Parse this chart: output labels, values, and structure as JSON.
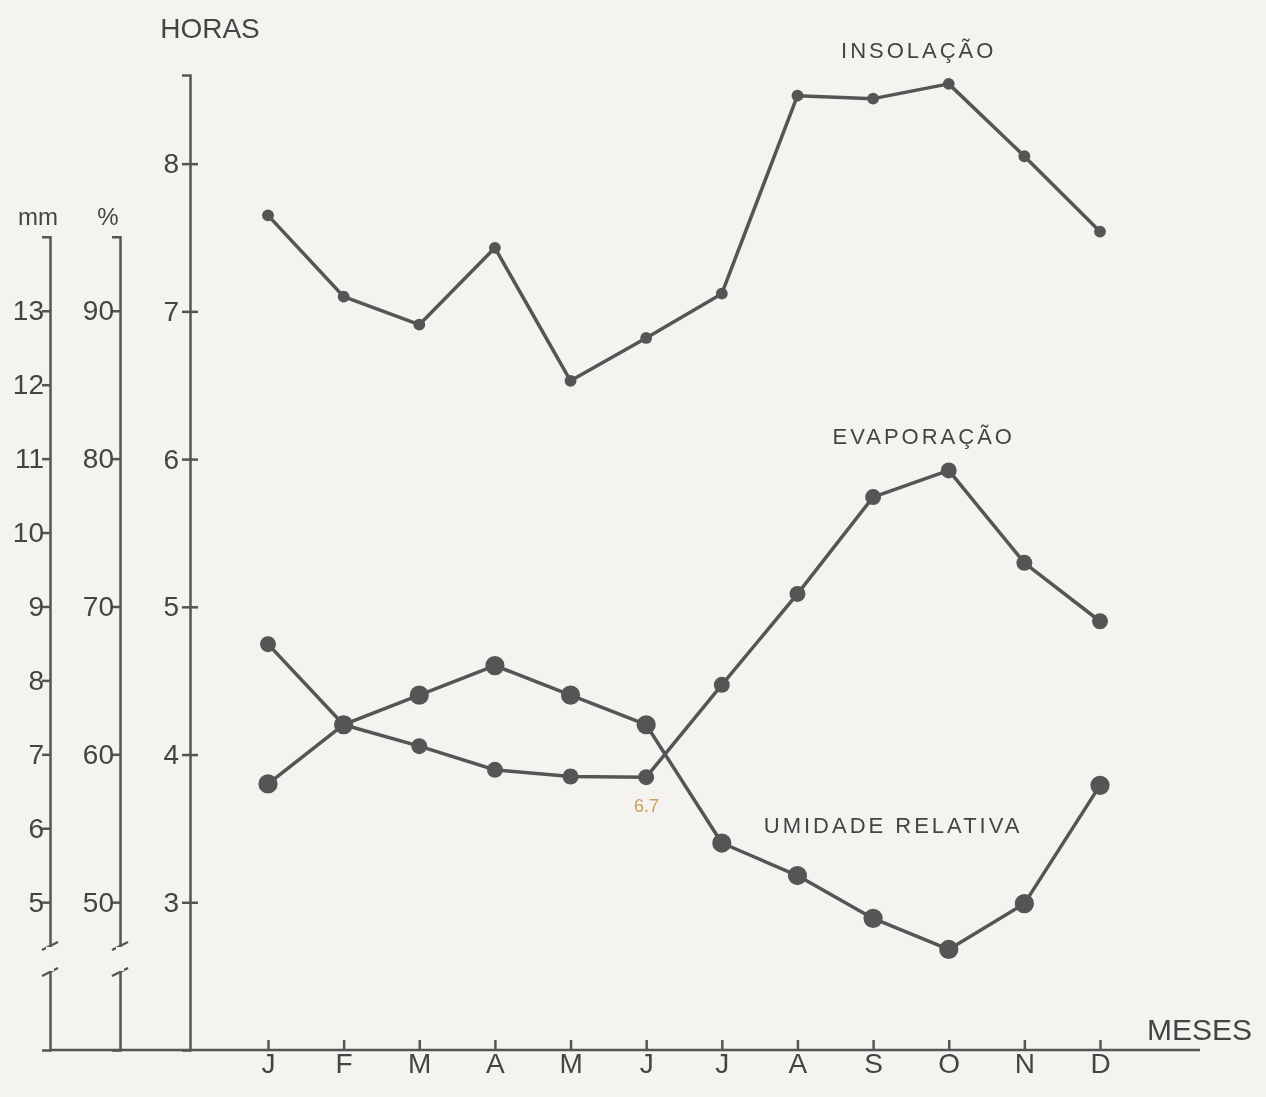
{
  "chart_data": {
    "type": "line",
    "ylabel": "HORAS",
    "y2label": "%",
    "y3label": "mm",
    "xlabel": "MESES",
    "categories": [
      "J",
      "F",
      "M",
      "A",
      "M",
      "J",
      "J",
      "A",
      "S",
      "O",
      "N",
      "D"
    ],
    "series": [
      {
        "name": "INSOLAÇÃO",
        "color": "#555555",
        "values": [
          7.65,
          7.1,
          6.91,
          7.43,
          6.53,
          6.82,
          7.12,
          8.46,
          8.44,
          8.54,
          8.05,
          7.54
        ]
      },
      {
        "name": "EVAPORAÇÃO",
        "color": "#555555",
        "axis": "y3",
        "values": [
          8.49,
          7.4,
          7.11,
          6.79,
          6.7,
          6.69,
          7.94,
          9.17,
          10.48,
          10.84,
          9.59,
          8.8
        ]
      },
      {
        "name": "UMIDADE RELATIVA",
        "color": "#555555",
        "axis": "y2",
        "values": [
          58,
          62,
          64,
          66,
          64,
          62,
          54,
          51.8,
          48.9,
          46.8,
          49.9,
          57.9
        ]
      }
    ],
    "ylim": [
      2,
      8.6
    ],
    "yticks": [
      3,
      4,
      5,
      6,
      7,
      8
    ],
    "y2lim": [
      40,
      95
    ],
    "y2ticks": [
      50,
      60,
      70,
      80,
      90
    ],
    "y3lim": [
      3,
      14
    ],
    "y3ticks": [
      5,
      6,
      7,
      8,
      9,
      10,
      11,
      12,
      13
    ],
    "marker": "circle",
    "line_style": "solid",
    "annotations": [
      "6.7"
    ]
  }
}
